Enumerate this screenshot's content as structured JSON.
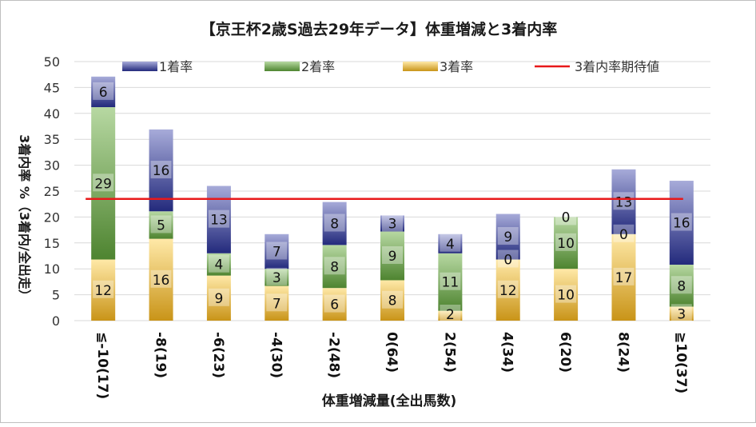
{
  "chart_data": {
    "type": "bar",
    "stacked": true,
    "title": "【京王杯2歳S過去29年データ】体重増減と3着内率",
    "xlabel": "体重増減量(全出馬数)",
    "ylabel": "3着内率 %（3着内/全出走）",
    "ylim": [
      0,
      50
    ],
    "yticks": [
      0,
      5,
      10,
      15,
      20,
      25,
      30,
      35,
      40,
      45,
      50
    ],
    "legend_position": "top",
    "categories": [
      "≦-10(17)",
      "-8(19)",
      "-6(23)",
      "-4(30)",
      "-2(48)",
      "0(64)",
      "2(54)",
      "4(34)",
      "6(20)",
      "8(24)",
      "≧10(37)"
    ],
    "series": [
      {
        "name": "3着率",
        "color": "#e0aa2a",
        "values": [
          11.8,
          15.8,
          8.7,
          6.7,
          6.3,
          7.8,
          1.9,
          11.8,
          10.0,
          16.7,
          2.7
        ],
        "labels": [
          "12",
          "16",
          "9",
          "7",
          "6",
          "8",
          "2",
          "12",
          "10",
          "17",
          "3"
        ]
      },
      {
        "name": "2着率",
        "color": "#5f973d",
        "values": [
          29.4,
          5.3,
          4.3,
          3.3,
          8.3,
          9.4,
          11.1,
          0.0,
          10.0,
          0.0,
          8.1
        ],
        "labels": [
          "29",
          "5",
          "4",
          "3",
          "8",
          "9",
          "11",
          "0",
          "10",
          "0",
          "8"
        ]
      },
      {
        "name": "1着率",
        "color": "#2e3586",
        "values": [
          5.9,
          15.8,
          13.0,
          6.7,
          8.3,
          3.1,
          3.7,
          8.8,
          0.0,
          12.5,
          16.2
        ],
        "labels": [
          "6",
          "16",
          "13",
          "7",
          "8",
          "3",
          "4",
          "9",
          "0",
          "13",
          "16"
        ]
      }
    ],
    "reference_line": {
      "name": "3着内率期待値",
      "value": 23.5,
      "color": "#e8191a"
    }
  }
}
